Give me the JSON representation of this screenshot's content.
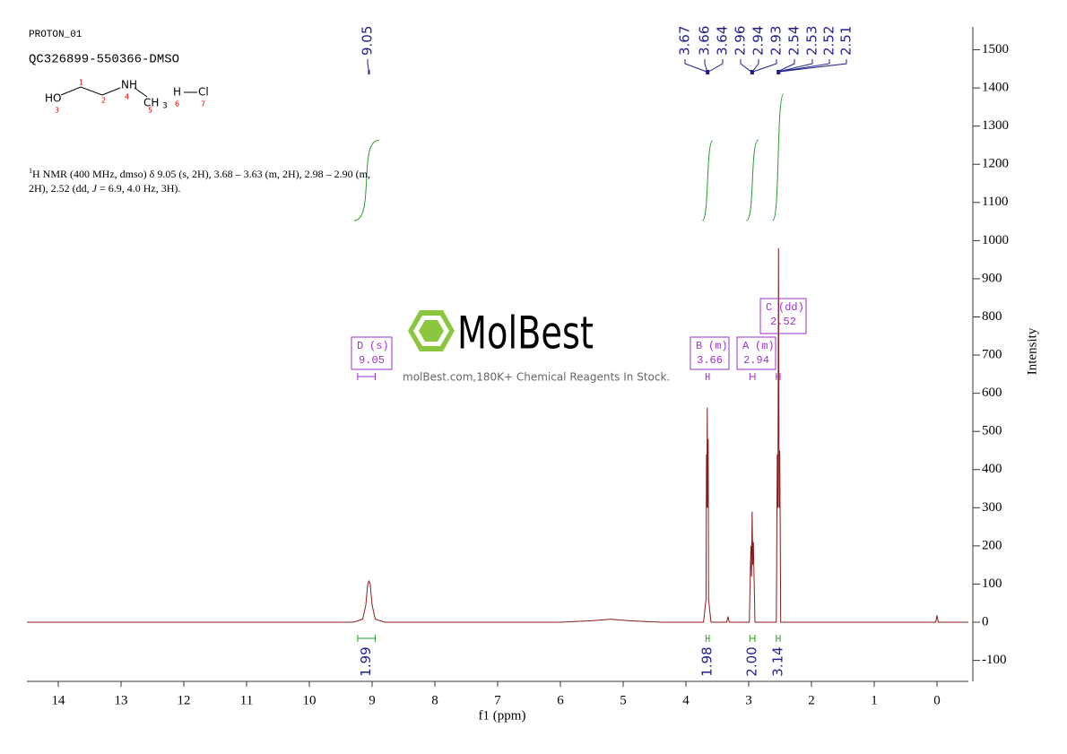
{
  "header": {
    "experiment": "PROTON_01",
    "sample": "QC326899-550366-DMSO"
  },
  "structure": {
    "labels": [
      "HO",
      "1",
      "3",
      "2",
      "NH",
      "4",
      "CH",
      "3",
      "5",
      "H",
      "6",
      "Cl",
      "7"
    ]
  },
  "description": {
    "nucleus": "1",
    "text": "H NMR (400 MHz, dmso) δ 9.05 (s, 2H), 3.68 – 3.63 (m, 2H), 2.98 – 2.90 (m, 2H), 2.52 (dd, ",
    "j": "J",
    "text_end": " = 6.9, 4.0 Hz, 3H)."
  },
  "watermark": {
    "brand": "MolBest",
    "tagline": "molBest.com,180K+ Chemical Reagents In Stock."
  },
  "chart_data": {
    "type": "line",
    "x_label": "f1 (ppm)",
    "y_label": "Intensity",
    "xlim": [
      14.5,
      -0.5
    ],
    "xticks": [
      14,
      13,
      12,
      11,
      10,
      9,
      8,
      7,
      6,
      5,
      4,
      3,
      2,
      1,
      0
    ],
    "ylim": [
      -155,
      1560
    ],
    "yticks": [
      -100,
      0,
      100,
      200,
      300,
      400,
      500,
      600,
      700,
      800,
      900,
      1000,
      1100,
      1200,
      1300,
      1400,
      1500
    ],
    "color": "#8b1a1a",
    "x": [
      14.5,
      9.3,
      9.15,
      9.1,
      9.07,
      9.05,
      9.03,
      9.0,
      8.95,
      8.8,
      6.0,
      5.5,
      5.2,
      4.9,
      4.4,
      3.72,
      3.68,
      3.673,
      3.667,
      3.66,
      3.653,
      3.645,
      3.64,
      3.6,
      3.35,
      3.33,
      3.31,
      2.99,
      2.965,
      2.955,
      2.945,
      2.935,
      2.925,
      2.9,
      2.56,
      2.545,
      2.535,
      2.525,
      2.515,
      2.505,
      2.49,
      0.02,
      0.0,
      -0.02,
      -0.5
    ],
    "values": [
      0,
      0,
      8,
      45,
      100,
      108,
      100,
      45,
      8,
      0,
      0,
      4,
      8,
      4,
      0,
      0,
      60,
      440,
      300,
      562,
      300,
      480,
      60,
      0,
      0,
      15,
      0,
      0,
      200,
      120,
      290,
      150,
      210,
      0,
      0,
      440,
      300,
      980,
      300,
      450,
      0,
      0,
      18,
      0,
      0
    ],
    "peaks": [
      9.05,
      3.67,
      3.66,
      3.64,
      2.96,
      2.94,
      2.93,
      2.54,
      2.53,
      2.52,
      2.51
    ],
    "multiplets": [
      {
        "label": "D",
        "kind": "(s)",
        "shift": 9.05,
        "range": [
          9.23,
          8.95
        ]
      },
      {
        "label": "B",
        "kind": "(m)",
        "shift": 3.66,
        "range": [
          3.68,
          3.63
        ]
      },
      {
        "label": "A",
        "kind": "(m)",
        "shift": 2.94,
        "range": [
          2.98,
          2.9
        ]
      },
      {
        "label": "C",
        "kind": "(dd)",
        "shift": 2.52,
        "range": [
          2.56,
          2.5
        ]
      }
    ],
    "integrals": [
      {
        "range": [
          9.23,
          8.95
        ],
        "value": 1.99
      },
      {
        "range": [
          3.68,
          3.63
        ],
        "value": 1.98
      },
      {
        "range": [
          2.98,
          2.9
        ],
        "value": {
          "value": 2,
          "label": "2.00"
        }
      },
      {
        "range": [
          2.56,
          2.5
        ],
        "value": 3.14
      }
    ]
  }
}
